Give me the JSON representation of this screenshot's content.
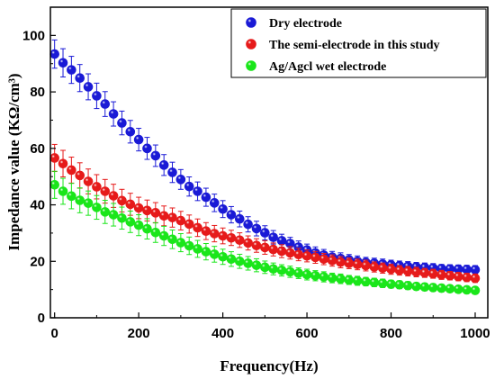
{
  "chart_data": {
    "type": "scatter",
    "title": "",
    "xlabel": "Frequency(Hz)",
    "ylabel": "Impedance value (KΩ/cm³)",
    "xlim": [
      -10,
      1030
    ],
    "ylim": [
      0,
      110
    ],
    "x_ticks": [
      0,
      200,
      400,
      600,
      800,
      1000
    ],
    "y_ticks": [
      0,
      20,
      40,
      60,
      80,
      100
    ],
    "grid": false,
    "legend_position": "top-right",
    "x": [
      0,
      20,
      40,
      60,
      80,
      100,
      120,
      140,
      160,
      180,
      200,
      220,
      240,
      260,
      280,
      300,
      320,
      340,
      360,
      380,
      400,
      420,
      440,
      460,
      480,
      500,
      520,
      540,
      560,
      580,
      600,
      620,
      640,
      660,
      680,
      700,
      720,
      740,
      760,
      780,
      800,
      820,
      840,
      860,
      880,
      900,
      920,
      940,
      960,
      980,
      1000
    ],
    "series": [
      {
        "name": "Dry electrode",
        "color": "#1a1ad6",
        "values": [
          93.4,
          90.3,
          87.8,
          84.9,
          81.8,
          78.6,
          75.7,
          72.2,
          69.0,
          65.9,
          63.1,
          60.0,
          57.4,
          54.1,
          51.5,
          49.0,
          46.5,
          44.8,
          42.7,
          40.7,
          38.5,
          36.5,
          35.0,
          33.1,
          31.6,
          30.1,
          28.5,
          27.3,
          26.3,
          25.0,
          24.0,
          23.0,
          22.2,
          21.5,
          21.0,
          20.5,
          20.0,
          19.6,
          19.3,
          19.0,
          18.7,
          18.4,
          18.2,
          18.0,
          17.8,
          17.6,
          17.4,
          17.3,
          17.2,
          17.1,
          17.0
        ],
        "errors": [
          5.0,
          5.0,
          4.8,
          4.8,
          4.6,
          4.5,
          4.4,
          4.3,
          4.2,
          4.0,
          4.0,
          3.9,
          3.8,
          3.7,
          3.6,
          3.5,
          3.4,
          3.3,
          3.2,
          3.1,
          3.0,
          2.9,
          2.8,
          2.7,
          2.6,
          2.5,
          2.4,
          2.3,
          2.2,
          2.2,
          2.1,
          2.1,
          2.0,
          2.0,
          2.0,
          1.9,
          1.9,
          1.8,
          1.8,
          1.8,
          1.7,
          1.7,
          1.7,
          1.6,
          1.6,
          1.6,
          1.5,
          1.5,
          1.5,
          1.5,
          1.5
        ]
      },
      {
        "name": "The semi-electrode in this study",
        "color": "#e61a1a",
        "values": [
          56.6,
          54.6,
          52.3,
          50.4,
          48.3,
          46.4,
          44.8,
          43.2,
          41.5,
          40.2,
          38.9,
          38.0,
          37.2,
          36.1,
          35.5,
          34.4,
          33.2,
          31.9,
          30.7,
          29.8,
          29.0,
          28.3,
          27.5,
          26.5,
          25.6,
          24.9,
          24.2,
          23.6,
          23.0,
          22.4,
          21.9,
          21.4,
          20.8,
          20.3,
          19.7,
          19.3,
          18.9,
          18.5,
          18.0,
          17.6,
          17.2,
          16.8,
          16.5,
          16.2,
          15.9,
          15.6,
          15.2,
          14.9,
          14.6,
          14.3,
          14.0
        ],
        "errors": [
          4.8,
          4.7,
          4.6,
          4.5,
          4.4,
          4.3,
          4.2,
          4.1,
          4.0,
          3.9,
          3.8,
          3.7,
          3.6,
          3.5,
          3.4,
          3.3,
          3.2,
          3.1,
          3.0,
          2.9,
          2.8,
          2.7,
          2.6,
          2.5,
          2.4,
          2.4,
          2.3,
          2.3,
          2.2,
          2.2,
          2.1,
          2.1,
          2.0,
          2.0,
          2.0,
          1.9,
          1.9,
          1.9,
          1.8,
          1.8,
          1.8,
          1.7,
          1.7,
          1.7,
          1.6,
          1.6,
          1.6,
          1.5,
          1.5,
          1.5,
          1.5
        ]
      },
      {
        "name": "Ag/Agcl wet electrode",
        "color": "#1ae61a",
        "values": [
          47.1,
          44.8,
          43.1,
          41.6,
          40.6,
          39.1,
          37.5,
          36.5,
          35.3,
          34.0,
          32.8,
          31.5,
          30.2,
          29.0,
          27.8,
          26.6,
          25.5,
          24.4,
          23.4,
          22.5,
          21.6,
          20.8,
          20.0,
          19.3,
          18.6,
          17.9,
          17.3,
          16.8,
          16.3,
          15.8,
          15.3,
          14.9,
          14.5,
          14.1,
          13.8,
          13.4,
          13.1,
          12.8,
          12.5,
          12.2,
          11.9,
          11.7,
          11.4,
          11.1,
          10.9,
          10.7,
          10.5,
          10.3,
          10.1,
          9.9,
          9.7
        ],
        "errors": [
          4.8,
          4.6,
          4.5,
          4.4,
          4.3,
          4.2,
          4.1,
          4.0,
          3.9,
          3.8,
          3.7,
          3.6,
          3.5,
          3.4,
          3.3,
          3.2,
          3.1,
          3.0,
          2.9,
          2.8,
          2.7,
          2.6,
          2.5,
          2.4,
          2.3,
          2.2,
          2.1,
          2.0,
          2.0,
          1.9,
          1.9,
          1.8,
          1.8,
          1.7,
          1.7,
          1.6,
          1.6,
          1.5,
          1.5,
          1.5,
          1.4,
          1.4,
          1.4,
          1.3,
          1.3,
          1.3,
          1.3,
          1.2,
          1.2,
          1.2,
          1.2
        ]
      }
    ]
  }
}
